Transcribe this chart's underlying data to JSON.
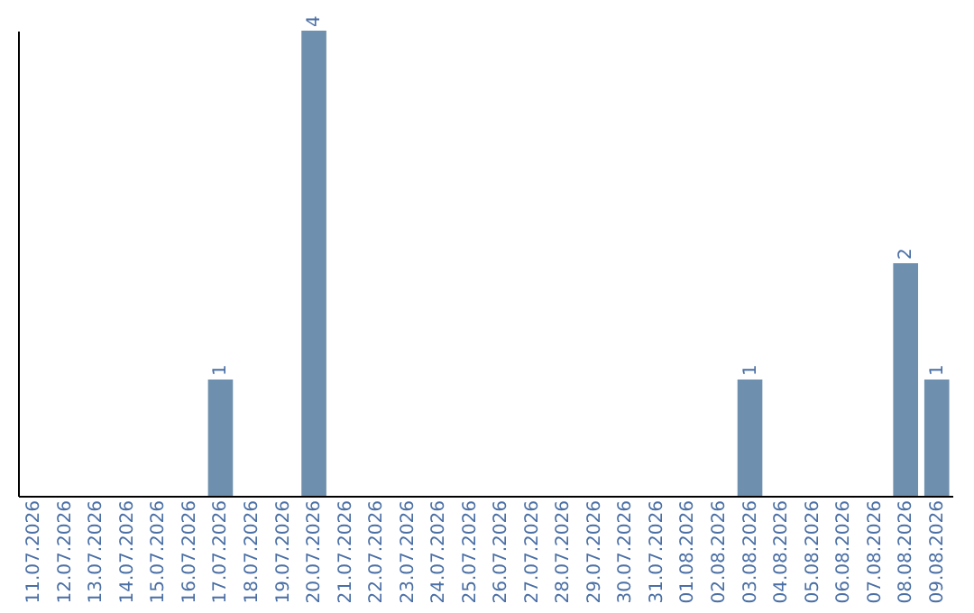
{
  "chart_data": {
    "type": "bar",
    "categories": [
      "11.07.2026",
      "12.07.2026",
      "13.07.2026",
      "14.07.2026",
      "15.07.2026",
      "16.07.2026",
      "17.07.2026",
      "18.07.2026",
      "19.07.2026",
      "20.07.2026",
      "21.07.2026",
      "22.07.2026",
      "23.07.2026",
      "24.07.2026",
      "25.07.2026",
      "26.07.2026",
      "27.07.2026",
      "28.07.2026",
      "29.07.2026",
      "30.07.2026",
      "31.07.2026",
      "01.08.2026",
      "02.08.2026",
      "03.08.2026",
      "04.08.2026",
      "05.08.2026",
      "06.08.2026",
      "07.08.2026",
      "08.08.2026",
      "09.08.2026"
    ],
    "values": [
      0,
      0,
      0,
      0,
      0,
      0,
      1,
      0,
      0,
      4,
      0,
      0,
      0,
      0,
      0,
      0,
      0,
      0,
      0,
      0,
      0,
      0,
      0,
      1,
      0,
      0,
      0,
      0,
      2,
      1
    ],
    "value_labels": [
      null,
      null,
      null,
      null,
      null,
      null,
      "1",
      null,
      null,
      "4",
      null,
      null,
      null,
      null,
      null,
      null,
      null,
      null,
      null,
      null,
      null,
      null,
      null,
      "1",
      null,
      null,
      null,
      null,
      "2",
      "1"
    ],
    "color": "#6e8fad",
    "grid": false,
    "tick_labels": "x"
  }
}
